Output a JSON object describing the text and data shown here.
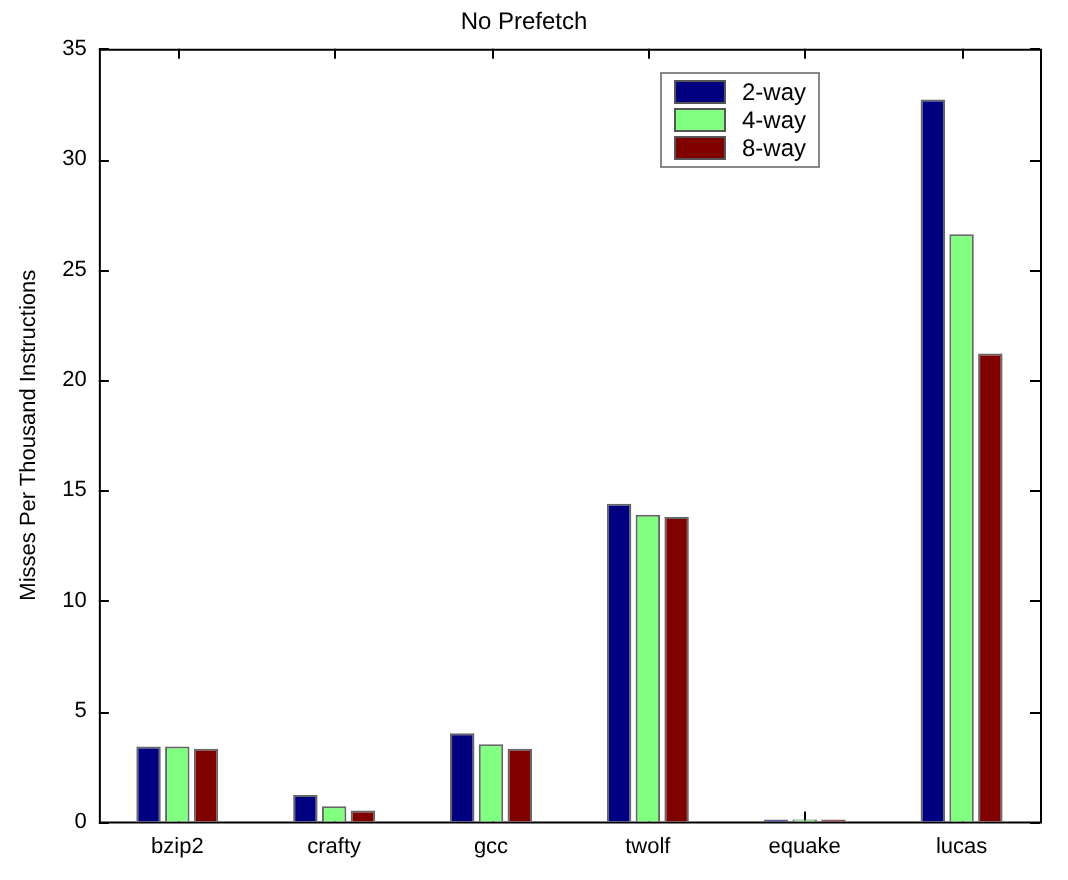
{
  "chart_data": {
    "type": "bar",
    "title": "No Prefetch",
    "ylabel": "Misses Per Thousand Instructions",
    "categories": [
      "bzip2",
      "crafty",
      "gcc",
      "twolf",
      "equake",
      "lucas"
    ],
    "series": [
      {
        "name": "2-way",
        "color": "#000080",
        "values": [
          3.4,
          1.2,
          4.0,
          14.4,
          0.1,
          32.7
        ]
      },
      {
        "name": "4-way",
        "color": "#80ff80",
        "values": [
          3.4,
          0.7,
          3.5,
          13.9,
          0.1,
          26.6
        ]
      },
      {
        "name": "8-way",
        "color": "#800000",
        "values": [
          3.3,
          0.5,
          3.3,
          13.8,
          0.1,
          21.2
        ]
      }
    ],
    "ylim": [
      0,
      35
    ],
    "yticks": [
      0,
      5,
      10,
      15,
      20,
      25,
      30,
      35
    ],
    "grid": false,
    "legend": "top right"
  }
}
